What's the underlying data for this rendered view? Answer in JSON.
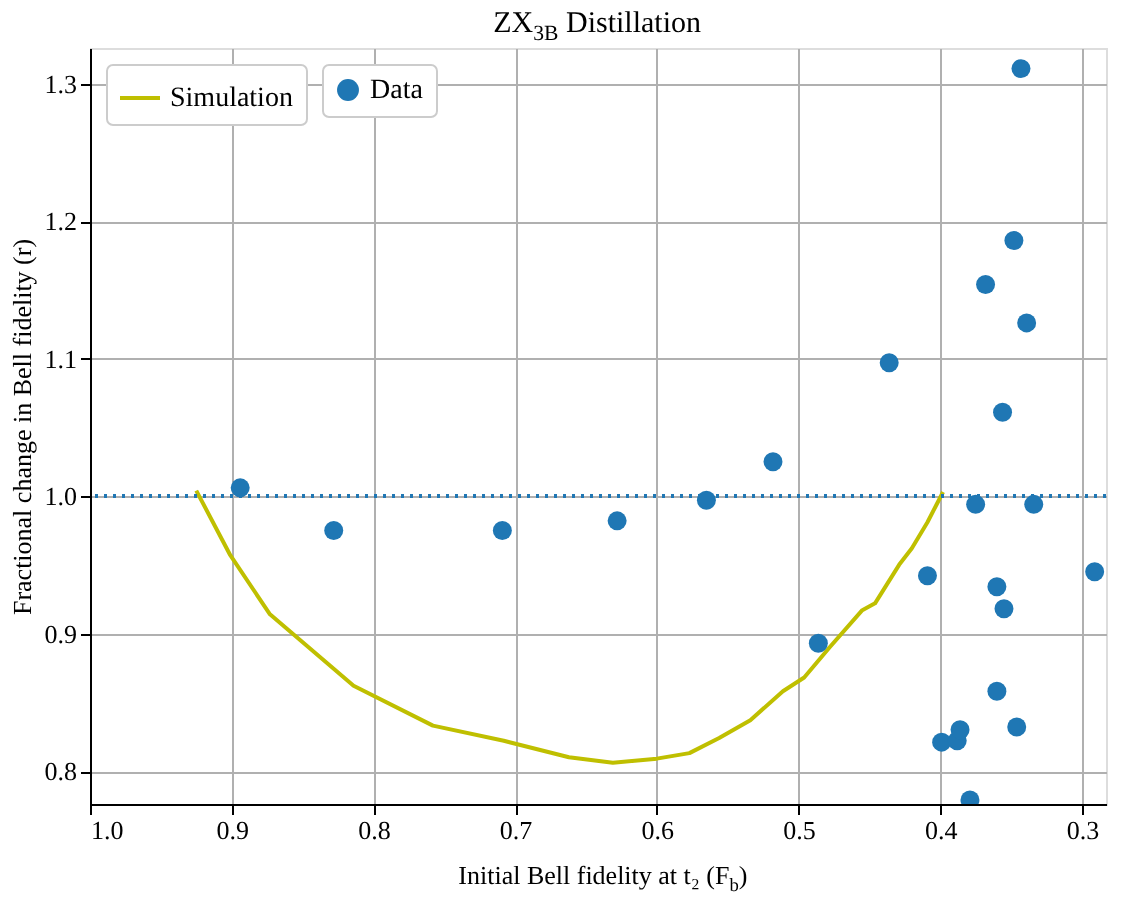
{
  "chart_data": {
    "type": "scatter",
    "title": "ZX$_{3B}$ Distillation",
    "xlabel": "Initial Bell fidelity at t₂ (F$_{b}$)",
    "ylabel": "Fractional change in Bell fidelity (r)",
    "xlim": [
      1.0,
      0.283
    ],
    "ylim": [
      0.776,
      1.326
    ],
    "xticks": [
      {
        "value": 1,
        "label": "1.0"
      },
      0.9,
      0.8,
      0.7,
      0.6,
      0.5,
      0.4,
      0.3
    ],
    "yticks": [
      0.8,
      0.9,
      {
        "value": 1,
        "label": "1.0"
      },
      1.1,
      1.2,
      1.3
    ],
    "grid": true,
    "legend": "top left",
    "ref_lines": [
      {
        "axis": "y",
        "value": 1.0,
        "color": "#1f77b4",
        "line_style": "dotted"
      }
    ],
    "series": [
      {
        "name": "Simulation",
        "type": "line",
        "color": "#bfbf00",
        "line_style": "solid",
        "marker": "none",
        "x": [
          0.925,
          0.901,
          0.873,
          0.814,
          0.758,
          0.708,
          0.662,
          0.631,
          0.6,
          0.577,
          0.556,
          0.534,
          0.511,
          0.496,
          0.478,
          0.455,
          0.446,
          0.429,
          0.42,
          0.409,
          0.403,
          0.398
        ],
        "values": [
          1.004,
          0.957,
          0.914,
          0.862,
          0.833,
          0.822,
          0.81,
          0.806,
          0.809,
          0.813,
          0.824,
          0.837,
          0.858,
          0.868,
          0.89,
          0.917,
          0.922,
          0.95,
          0.962,
          0.981,
          0.993,
          1.003
        ]
      },
      {
        "name": "Data",
        "type": "scatter",
        "color": "#1f77b4",
        "marker": "circle",
        "x": [
          0.894,
          0.828,
          0.709,
          0.628,
          0.565,
          0.518,
          0.486,
          0.436,
          0.409,
          0.399,
          0.388,
          0.386,
          0.379,
          0.375,
          0.368,
          0.36,
          0.36,
          0.356,
          0.355,
          0.348,
          0.346,
          0.343,
          0.339,
          0.334,
          0.291
        ],
        "values": [
          1.006,
          0.975,
          0.975,
          0.982,
          0.997,
          1.025,
          0.893,
          1.097,
          0.942,
          0.821,
          0.822,
          0.83,
          0.779,
          0.994,
          1.154,
          0.934,
          0.858,
          1.061,
          0.918,
          1.186,
          0.832,
          1.311,
          1.126,
          0.994,
          0.945
        ]
      }
    ]
  }
}
